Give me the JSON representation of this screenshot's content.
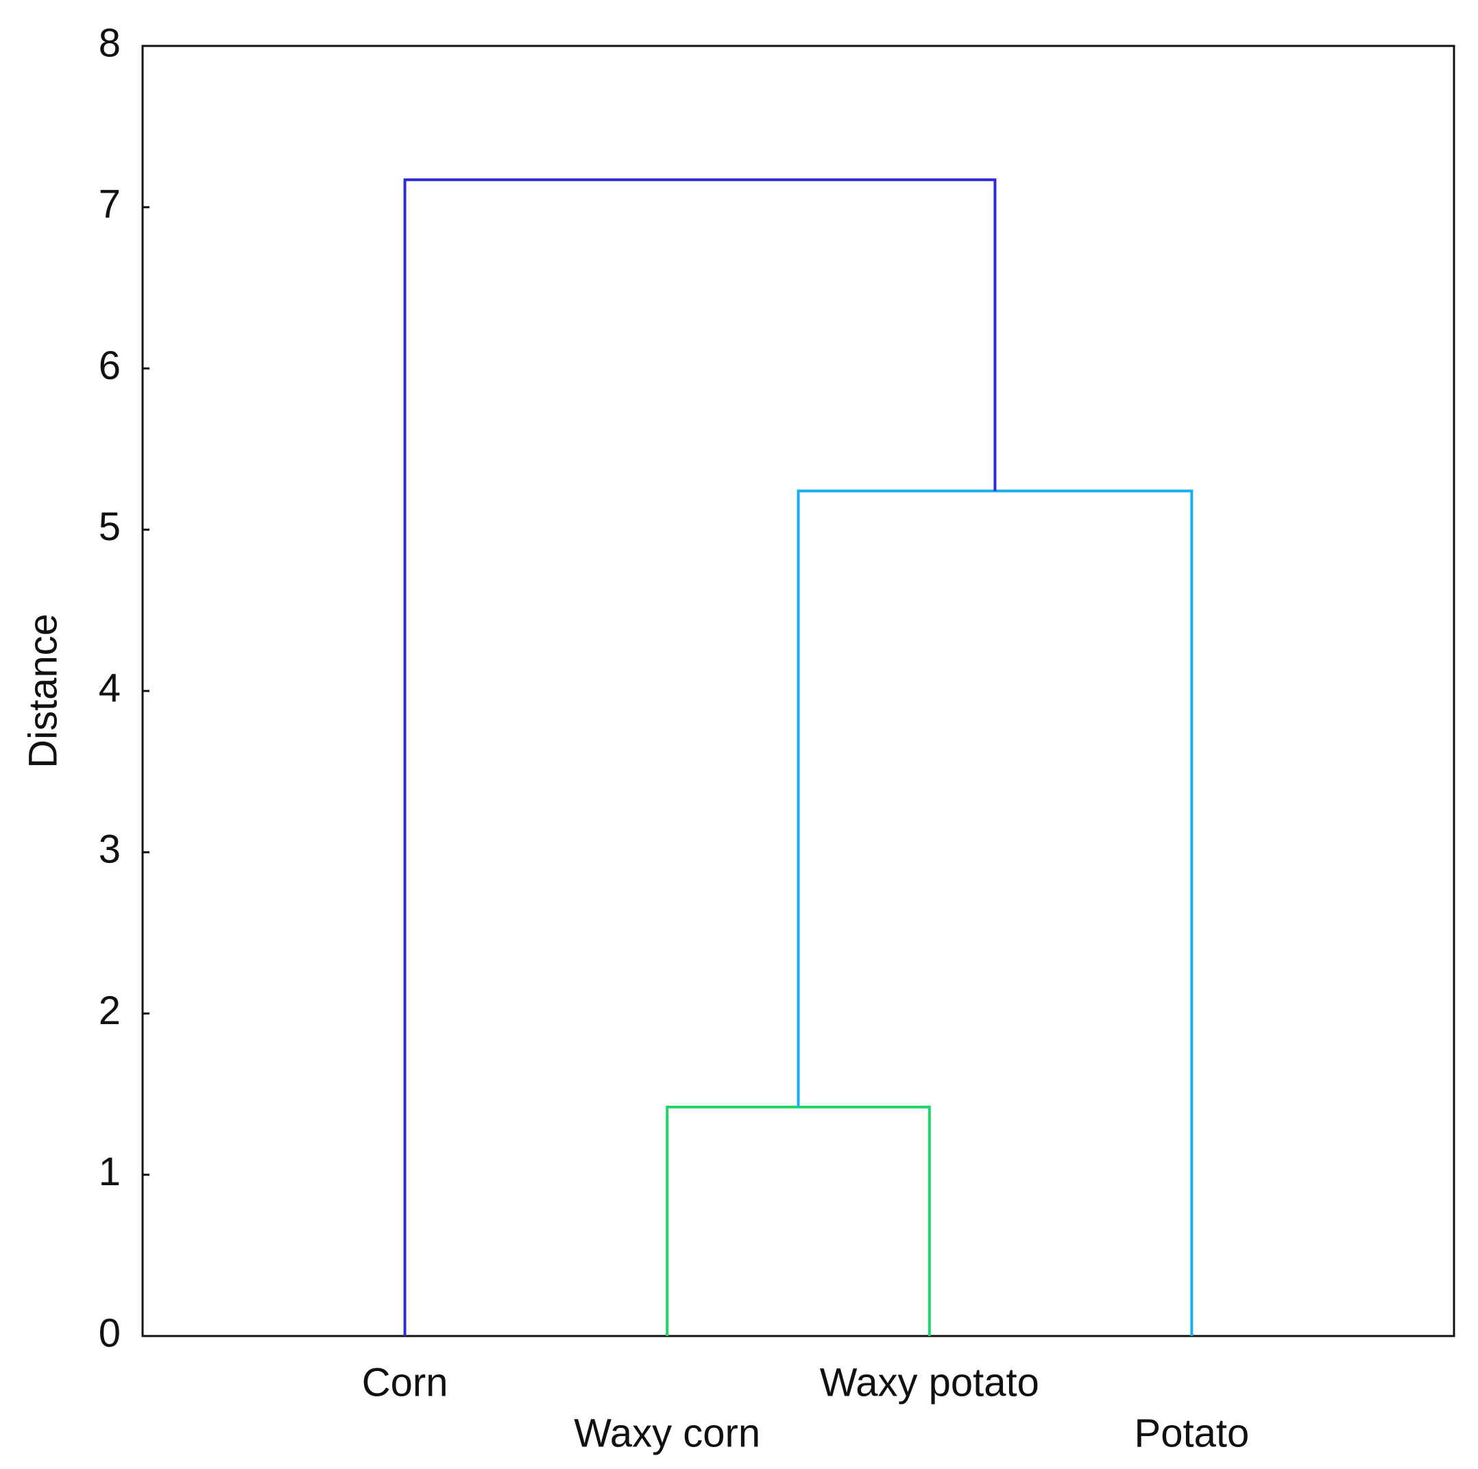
{
  "chart_data": {
    "type": "dendrogram",
    "ylabel": "Distance",
    "categories": [
      "Corn",
      "Waxy corn",
      "Waxy potato",
      "Potato"
    ],
    "merges": [
      {
        "children": [
          1,
          2
        ],
        "height": 1.42,
        "color": "#22d46a"
      },
      {
        "children": [
          4,
          3
        ],
        "height": 5.24,
        "color": "#1aaef0"
      },
      {
        "children": [
          0,
          5
        ],
        "height": 7.17,
        "color": "#2b2bdc"
      }
    ],
    "ylim": [
      0,
      8
    ],
    "yticks": [
      0,
      1,
      2,
      3,
      4,
      5,
      6,
      7,
      8
    ]
  }
}
